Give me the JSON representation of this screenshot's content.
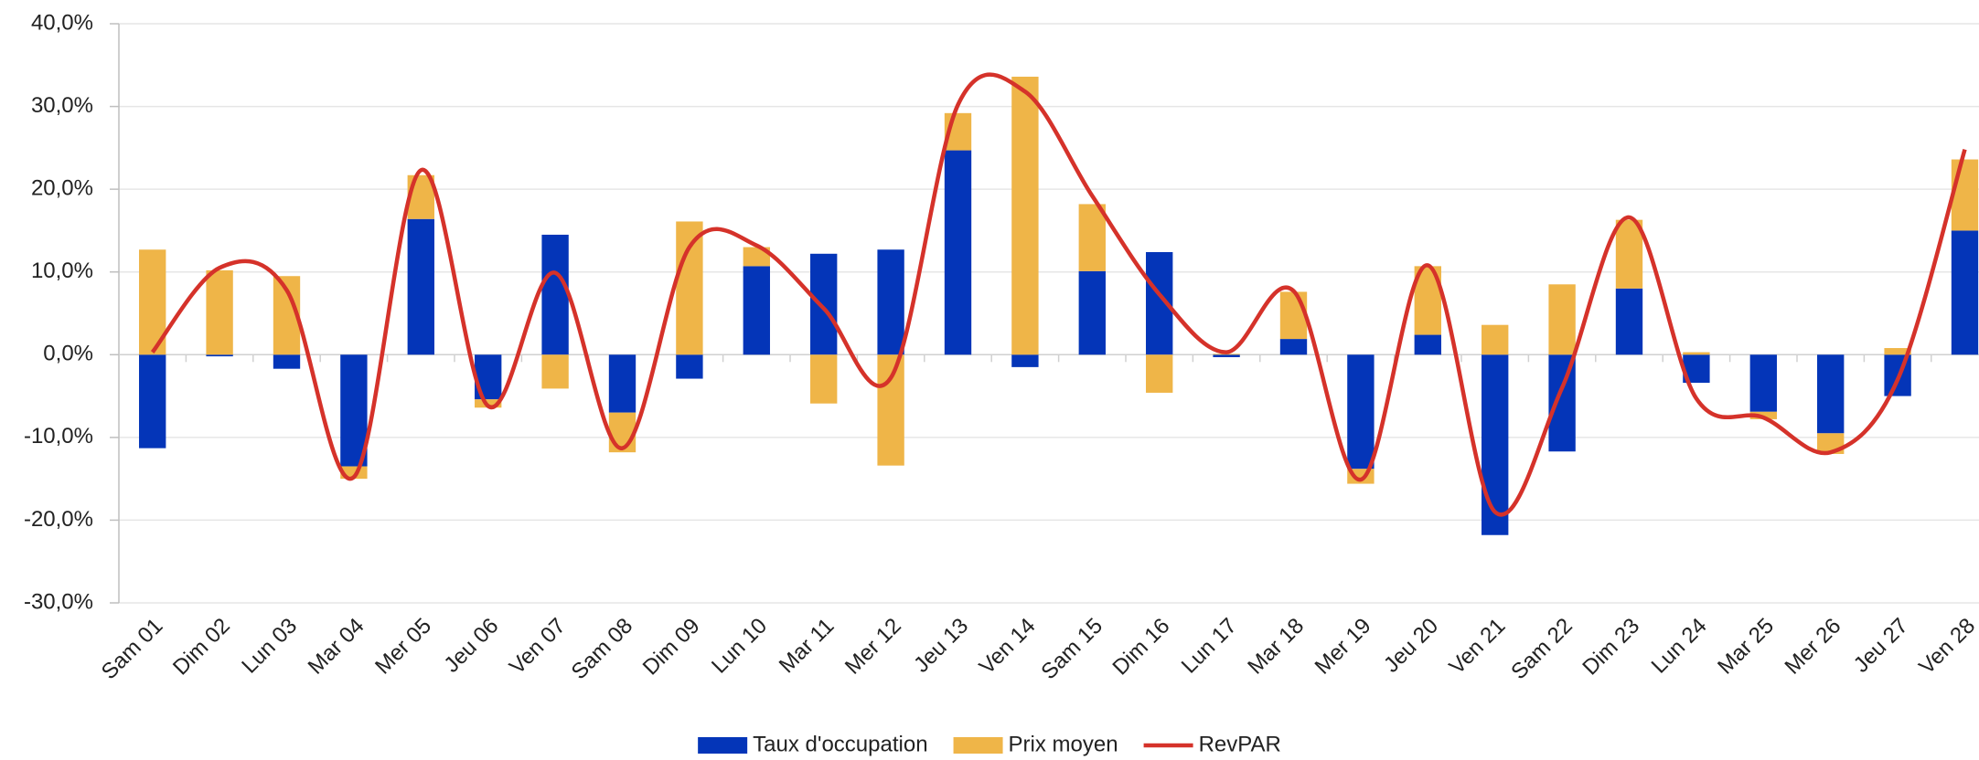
{
  "chart_data": {
    "type": "bar",
    "categories": [
      "Sam 01",
      "Dim 02",
      "Lun 03",
      "Mar 04",
      "Mer 05",
      "Jeu 06",
      "Ven 07",
      "Sam 08",
      "Dim 09",
      "Lun 10",
      "Mar 11",
      "Mer 12",
      "Jeu 13",
      "Ven 14",
      "Sam 15",
      "Dim 16",
      "Lun 17",
      "Mar 18",
      "Mer 19",
      "Jeu 20",
      "Ven 21",
      "Sam 22",
      "Dim 23",
      "Lun 24",
      "Mar 25",
      "Mer 26",
      "Jeu 27",
      "Ven 28"
    ],
    "series": [
      {
        "name": "Taux d'occupation",
        "type": "bar",
        "color": "#0435b8",
        "values": [
          -11.3,
          -0.2,
          -1.7,
          -13.5,
          16.4,
          -5.4,
          14.5,
          -7.0,
          -2.9,
          10.7,
          12.2,
          12.7,
          24.7,
          -1.5,
          10.1,
          12.4,
          -0.3,
          1.9,
          -13.8,
          2.4,
          -21.8,
          -11.7,
          8.0,
          -3.4,
          -6.9,
          -9.5,
          -5.0,
          15.0
        ]
      },
      {
        "name": "Prix moyen",
        "type": "bar",
        "color": "#efb548",
        "values": [
          12.7,
          10.2,
          9.5,
          -1.5,
          5.3,
          -1.0,
          -4.1,
          -4.8,
          16.1,
          2.3,
          -5.9,
          -13.4,
          4.5,
          33.6,
          8.1,
          -4.6,
          0.1,
          5.7,
          -1.8,
          8.3,
          3.6,
          8.5,
          8.3,
          0.3,
          -0.9,
          -2.5,
          0.8,
          8.6
        ]
      },
      {
        "name": "RevPAR",
        "type": "line",
        "color": "#d5322a",
        "values": [
          0.3,
          10.5,
          7.8,
          -14.8,
          22.3,
          -6.2,
          9.9,
          -11.3,
          13.0,
          13.2,
          5.6,
          -2.8,
          30.2,
          31.8,
          19.2,
          7.3,
          0.3,
          7.7,
          -15.1,
          10.8,
          -19.0,
          -4.0,
          16.6,
          -5.3,
          -7.6,
          -11.8,
          -3.0,
          24.8
        ]
      }
    ],
    "stacked": true,
    "ylim": [
      -30,
      40
    ],
    "yticks": [
      {
        "value": -30,
        "label": "-30,0%"
      },
      {
        "value": -20,
        "label": "-20,0%"
      },
      {
        "value": -10,
        "label": "-10,0%"
      },
      {
        "value": 0,
        "label": "0,0%"
      },
      {
        "value": 10,
        "label": "10,0%"
      },
      {
        "value": 20,
        "label": "20,0%"
      },
      {
        "value": 30,
        "label": "30,0%"
      },
      {
        "value": 40,
        "label": "40,0%"
      }
    ],
    "grid": true,
    "legend": "bottom"
  }
}
